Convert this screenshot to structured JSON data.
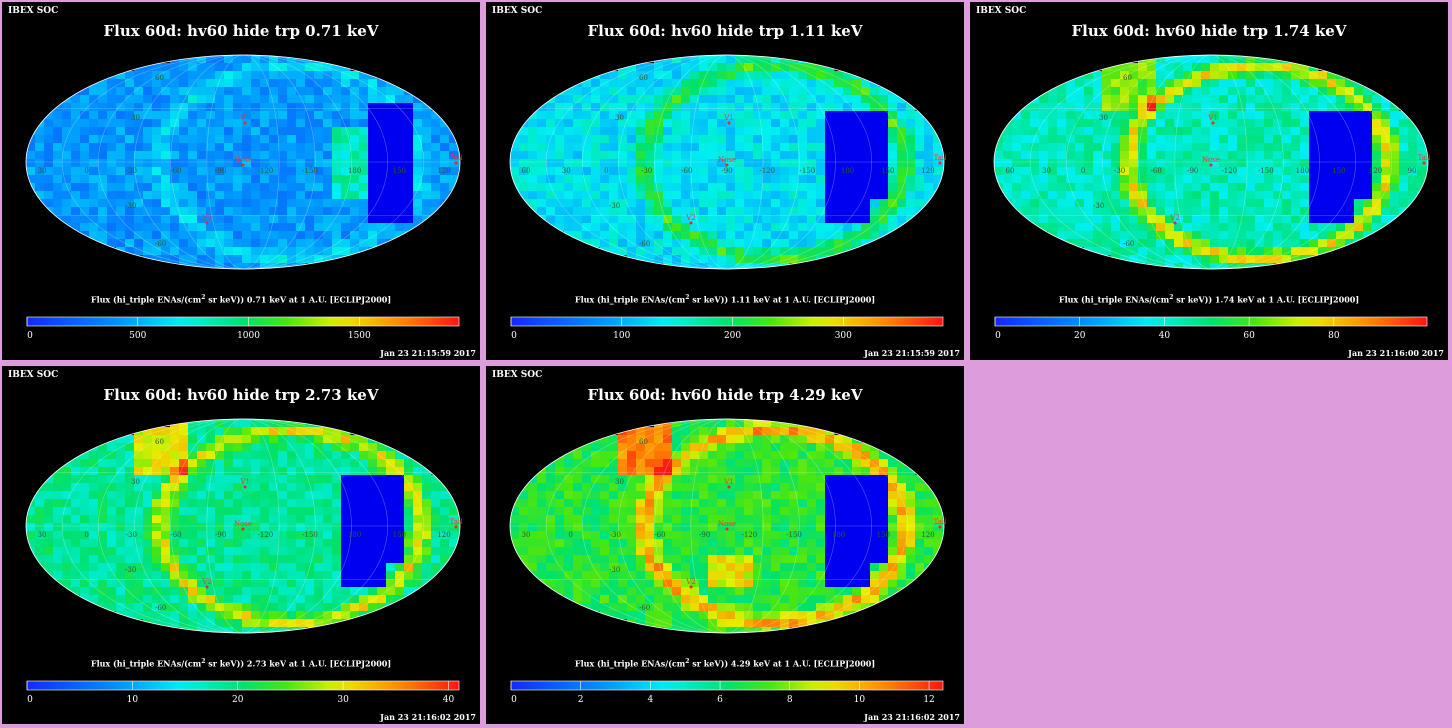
{
  "header": {
    "soc_label": "IBEX SOC"
  },
  "colors": {
    "background": "#dd9ddd",
    "panel": "#000000"
  },
  "marker_labels": {
    "v1": "V1",
    "v2": "V2",
    "nose": "Nose",
    "tail": "Tail"
  },
  "panels": [
    {
      "title": "Flux 60d: hv60 hide trp 0.71 keV",
      "unit_prefix": "Flux (hi_triple ENAs/(cm",
      "unit_exp": "2",
      "unit_suffix": " sr keV)) 0.71 keV at 1 A.U. [ECLIPJ2000]",
      "timestamp": "Jan 23 21:15:59 2017",
      "colorbar": {
        "min": 0,
        "max": 1950,
        "ticks": [
          0,
          500,
          1000,
          1500
        ]
      },
      "lon_labels": [
        "30",
        "0",
        "-30",
        "-60",
        "-90",
        "-120",
        "-150",
        "180",
        "150",
        "120"
      ],
      "lat_labels": [
        "60",
        "30",
        "-30",
        "-60"
      ]
    },
    {
      "title": "Flux 60d: hv60 hide trp 1.11 keV",
      "unit_prefix": "Flux (hi_triple ENAs/(cm",
      "unit_exp": "2",
      "unit_suffix": " sr keV)) 1.11 keV at 1 A.U. [ECLIPJ2000]",
      "timestamp": "Jan 23 21:15:59 2017",
      "colorbar": {
        "min": 0,
        "max": 390,
        "ticks": [
          0,
          100,
          200,
          300
        ]
      },
      "lon_labels": [
        "60",
        "30",
        "0",
        "-30",
        "-60",
        "-90",
        "-120",
        "-150",
        "180",
        "150",
        "120"
      ],
      "lat_labels": [
        "60",
        "30",
        "-30",
        "-60"
      ]
    },
    {
      "title": "Flux 60d: hv60 hide trp 1.74 keV",
      "unit_prefix": "Flux (hi_triple ENAs/(cm",
      "unit_exp": "2",
      "unit_suffix": " sr keV)) 1.74 keV at 1 A.U. [ECLIPJ2000]",
      "timestamp": "Jan 23 21:16:00 2017",
      "colorbar": {
        "min": 0,
        "max": 102,
        "ticks": [
          0,
          20,
          40,
          60,
          80
        ]
      },
      "lon_labels": [
        "60",
        "30",
        "0",
        "-30",
        "-60",
        "-90",
        "-120",
        "-150",
        "180",
        "150",
        "120",
        "90"
      ],
      "lat_labels": [
        "60",
        "30",
        "-30",
        "-60"
      ]
    },
    {
      "title": "Flux 60d: hv60 hide trp 2.73 keV",
      "unit_prefix": "Flux (hi_triple ENAs/(cm",
      "unit_exp": "2",
      "unit_suffix": " sr keV)) 2.73 keV at 1 A.U. [ECLIPJ2000]",
      "timestamp": "Jan 23 21:16:02 2017",
      "colorbar": {
        "min": 0,
        "max": 41,
        "ticks": [
          0,
          10,
          20,
          30,
          40
        ]
      },
      "lon_labels": [
        "30",
        "0",
        "-30",
        "-60",
        "-90",
        "-120",
        "-150",
        "180",
        "150",
        "120"
      ],
      "lat_labels": [
        "60",
        "30",
        "-30",
        "-60"
      ]
    },
    {
      "title": "Flux 60d: hv60 hide trp 4.29 keV",
      "unit_prefix": "Flux (hi_triple ENAs/(cm",
      "unit_exp": "2",
      "unit_suffix": " sr keV)) 4.29 keV at 1 A.U. [ECLIPJ2000]",
      "timestamp": "Jan 23 21:16:02 2017",
      "colorbar": {
        "min": 0,
        "max": 12.4,
        "ticks": [
          0,
          2,
          4,
          6,
          8,
          10,
          12
        ]
      },
      "lon_labels": [
        "30",
        "0",
        "-30",
        "-60",
        "-90",
        "-120",
        "-150",
        "180",
        "150",
        "120"
      ],
      "lat_labels": [
        "60",
        "30",
        "-30",
        "-60"
      ]
    }
  ],
  "chart_data": [
    {
      "type": "heatmap",
      "title": "Flux 60d: hv60 hide trp 0.71 keV",
      "colorbar_label": "Flux (hi_triple ENAs/(cm2 sr keV)) 0.71 keV at 1 A.U. [ECLIPJ2000]",
      "zlim": [
        0,
        1950
      ],
      "ticks": [
        0,
        500,
        1000,
        1500
      ]
    },
    {
      "type": "heatmap",
      "title": "Flux 60d: hv60 hide trp 1.11 keV",
      "colorbar_label": "Flux (hi_triple ENAs/(cm2 sr keV)) 1.11 keV at 1 A.U. [ECLIPJ2000]",
      "zlim": [
        0,
        390
      ],
      "ticks": [
        0,
        100,
        200,
        300
      ]
    },
    {
      "type": "heatmap",
      "title": "Flux 60d: hv60 hide trp 1.74 keV",
      "colorbar_label": "Flux (hi_triple ENAs/(cm2 sr keV)) 1.74 keV at 1 A.U. [ECLIPJ2000]",
      "zlim": [
        0,
        102
      ],
      "ticks": [
        0,
        20,
        40,
        60,
        80
      ]
    },
    {
      "type": "heatmap",
      "title": "Flux 60d: hv60 hide trp 2.73 keV",
      "colorbar_label": "Flux (hi_triple ENAs/(cm2 sr keV)) 2.73 keV at 1 A.U. [ECLIPJ2000]",
      "zlim": [
        0,
        41
      ],
      "ticks": [
        0,
        10,
        20,
        30,
        40
      ]
    },
    {
      "type": "heatmap",
      "title": "Flux 60d: hv60 hide trp 4.29 keV",
      "colorbar_label": "Flux (hi_triple ENAs/(cm2 sr keV)) 4.29 keV at 1 A.U. [ECLIPJ2000]",
      "zlim": [
        0,
        12.4
      ],
      "ticks": [
        0,
        2,
        4,
        6,
        8,
        10,
        12
      ]
    }
  ]
}
